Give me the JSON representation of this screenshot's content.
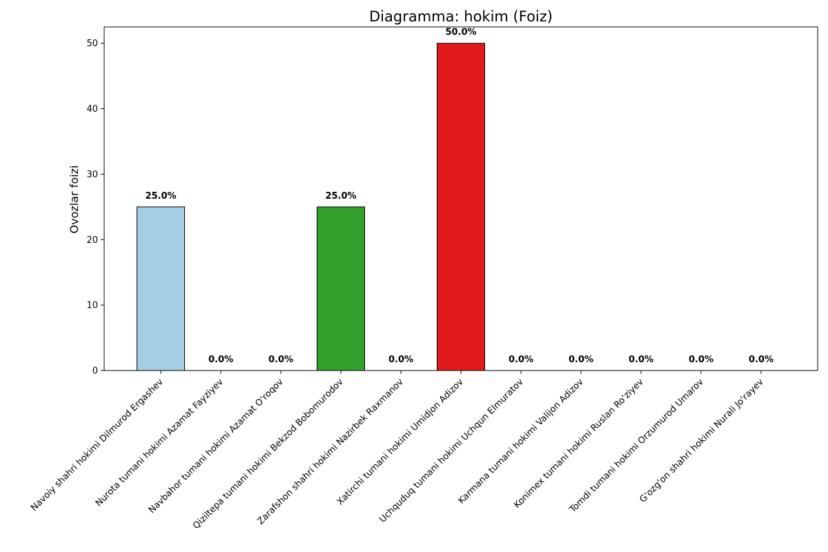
{
  "chart_data": {
    "type": "bar",
    "title": "Diagramma: hokim (Foiz)",
    "xlabel": "",
    "ylabel": "Ovozlar foizi",
    "ylim": [
      0,
      52.5
    ],
    "yticks": [
      0,
      10,
      20,
      30,
      40,
      50
    ],
    "grid": false,
    "categories": [
      "Navoiy shahri hokimi Dilmurod Ergashev",
      "Nurota tumani hokimi Azamat Fayziyev",
      "Navbahor tumani hokimi Azamat O'roqov",
      "Qiziltepa tumani hokimi Bekzod Bobomurodov",
      "Zarafshon shahri hokimi Nazirbek Raxmanov",
      "Xatirchi tumani hokimi Umidjon Adizov",
      "Uchquduq tumani hokimi Uchqun Elmuratov",
      "Karmana tumani hokimi Valijon Adizov",
      "Konimex tumani hokimi Ruslan Ro'ziyev",
      "Tomdi tumani hokimi Orzumurod Umarov",
      "G'ozg'on shahri hokimi Nurali Jo'rayev"
    ],
    "values": [
      25.0,
      0.0,
      0.0,
      25.0,
      0.0,
      50.0,
      0.0,
      0.0,
      0.0,
      0.0,
      0.0
    ],
    "value_labels": [
      "25.0%",
      "0.0%",
      "0.0%",
      "25.0%",
      "0.0%",
      "50.0%",
      "0.0%",
      "0.0%",
      "0.0%",
      "0.0%",
      "0.0%"
    ],
    "colors": [
      "#a6cee3",
      "#1f78b4",
      "#b2df8a",
      "#33a02c",
      "#fb9a99",
      "#e31a1c",
      "#fdbf6f",
      "#ff7f00",
      "#cab2d6",
      "#6a3d9a",
      "#ffff99"
    ],
    "edge_color": "#000000"
  }
}
